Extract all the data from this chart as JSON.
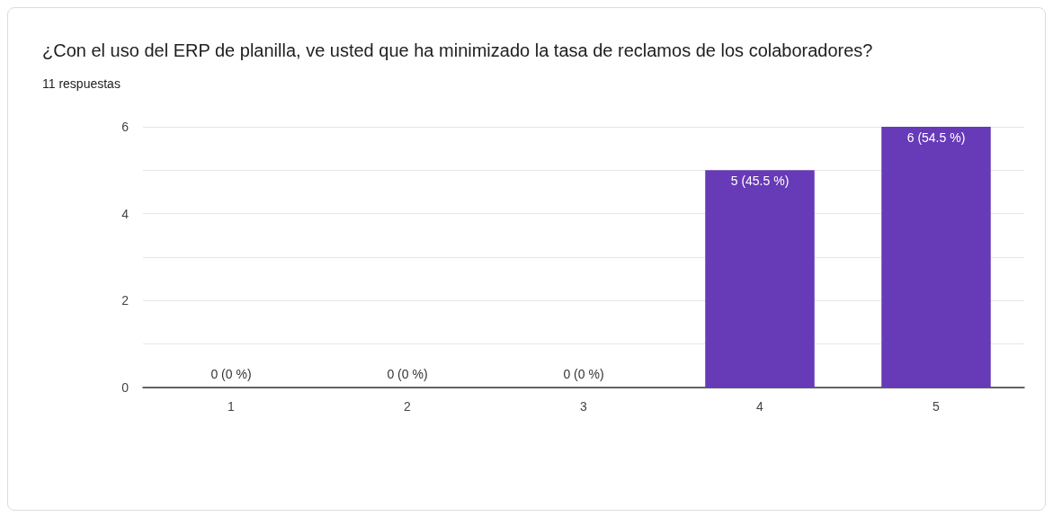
{
  "chart_data": {
    "type": "bar",
    "title": "¿Con el uso del ERP de planilla, ve usted que ha minimizado la tasa de reclamos de los colaboradores?",
    "subtitle": "11 respuestas",
    "categories": [
      "1",
      "2",
      "3",
      "4",
      "5"
    ],
    "values": [
      0,
      0,
      0,
      5,
      6
    ],
    "value_labels": [
      "0 (0 %)",
      "0 (0 %)",
      "0 (0 %)",
      "5 (45.5 %)",
      "6 (54.5 %)"
    ],
    "color": "#673ab7",
    "ylim": [
      0,
      6
    ],
    "yticks": [
      0,
      {
        "value": 1,
        "label": null
      },
      2,
      {
        "value": 3,
        "label": null
      },
      4,
      {
        "value": 5,
        "label": null
      },
      6
    ],
    "grid": "y"
  }
}
